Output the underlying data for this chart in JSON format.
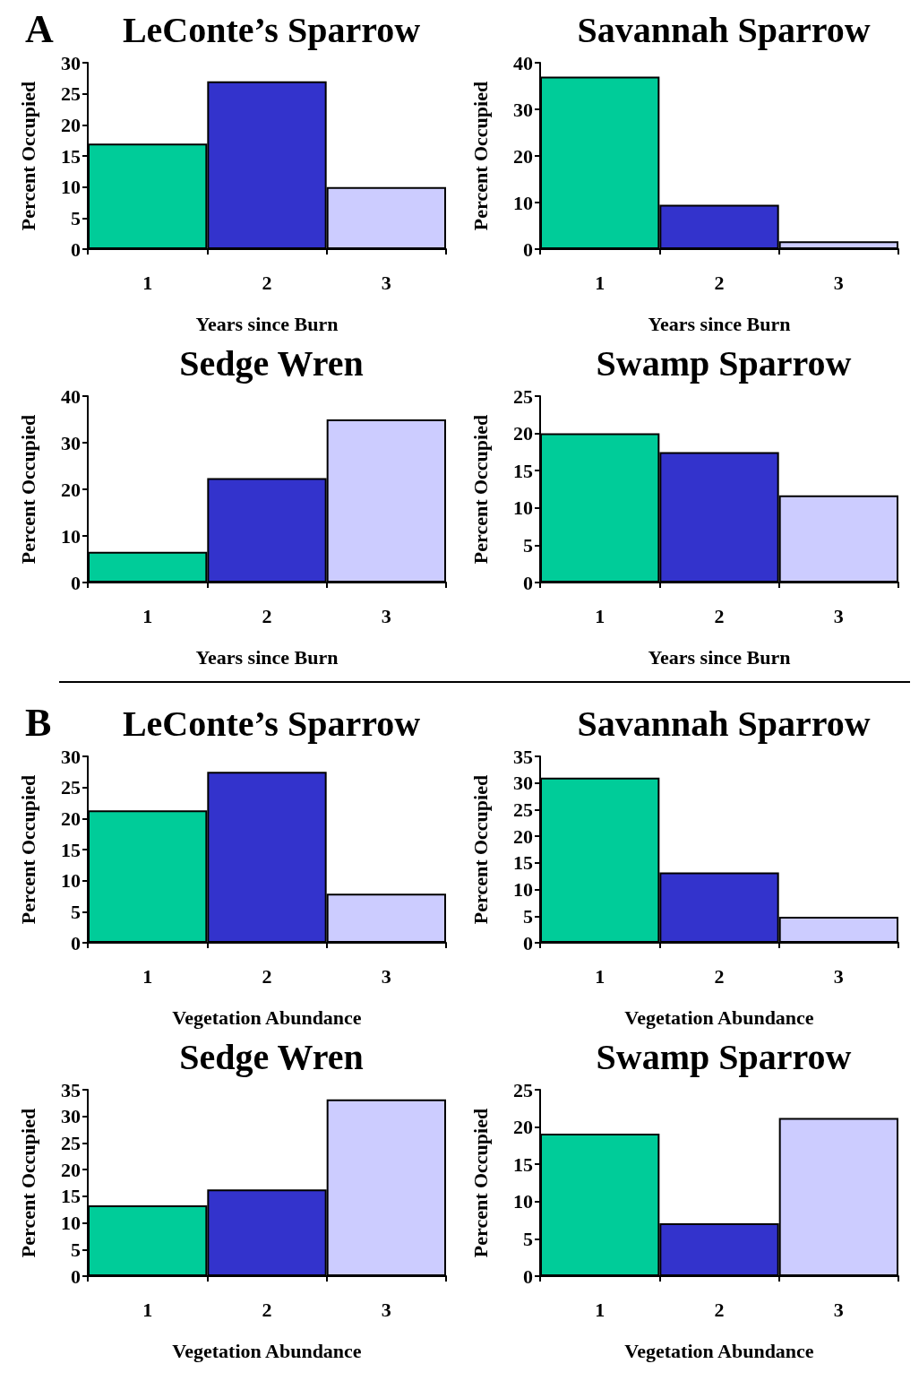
{
  "chart_data": [
    {
      "type": "bar",
      "title": "LeConte’s Sparrow",
      "annotations": [
        "A"
      ],
      "xlabel": "Years since Burn",
      "ylabel": "Percent Occupied",
      "categories": [
        "1",
        "2",
        "3"
      ],
      "values": [
        17,
        27,
        10
      ],
      "colors": [
        "#00cc99",
        "#3333cc",
        "#ccccff"
      ],
      "ylim": [
        0,
        30
      ],
      "yticks": [
        0,
        5,
        10,
        15,
        20,
        25,
        30
      ]
    },
    {
      "type": "bar",
      "title": "Savannah Sparrow",
      "xlabel": "Years since Burn",
      "ylabel": "Percent Occupied",
      "categories": [
        "1",
        "2",
        "3"
      ],
      "values": [
        37,
        9.5,
        1.7
      ],
      "colors": [
        "#00cc99",
        "#3333cc",
        "#ccccff"
      ],
      "ylim": [
        0,
        40
      ],
      "yticks": [
        0,
        10,
        20,
        30,
        40
      ]
    },
    {
      "type": "bar",
      "title": "Sedge Wren",
      "xlabel": "Years since Burn",
      "ylabel": "Percent Occupied",
      "categories": [
        "1",
        "2",
        "3"
      ],
      "values": [
        6.6,
        22.4,
        35
      ],
      "colors": [
        "#00cc99",
        "#3333cc",
        "#ccccff"
      ],
      "ylim": [
        0,
        40
      ],
      "yticks": [
        0,
        10,
        20,
        30,
        40
      ]
    },
    {
      "type": "bar",
      "title": "Swamp Sparrow",
      "xlabel": "Years since Burn",
      "ylabel": "Percent Occupied",
      "categories": [
        "1",
        "2",
        "3"
      ],
      "values": [
        20,
        17.5,
        11.7
      ],
      "colors": [
        "#00cc99",
        "#3333cc",
        "#ccccff"
      ],
      "ylim": [
        0,
        25
      ],
      "yticks": [
        0,
        5,
        10,
        15,
        20,
        25
      ]
    },
    {
      "type": "bar",
      "title": "LeConte’s Sparrow",
      "annotations": [
        "B"
      ],
      "xlabel": "Vegetation Abundance",
      "ylabel": "Percent Occupied",
      "categories": [
        "1",
        "2",
        "3"
      ],
      "values": [
        21.3,
        27.5,
        7.9
      ],
      "colors": [
        "#00cc99",
        "#3333cc",
        "#ccccff"
      ],
      "ylim": [
        0,
        30
      ],
      "yticks": [
        0,
        5,
        10,
        15,
        20,
        25,
        30
      ]
    },
    {
      "type": "bar",
      "title": "Savannah Sparrow",
      "xlabel": "Vegetation Abundance",
      "ylabel": "Percent Occupied",
      "categories": [
        "1",
        "2",
        "3"
      ],
      "values": [
        31,
        13.2,
        4.9
      ],
      "colors": [
        "#00cc99",
        "#3333cc",
        "#ccccff"
      ],
      "ylim": [
        0,
        35
      ],
      "yticks": [
        0,
        5,
        10,
        15,
        20,
        25,
        30,
        35
      ]
    },
    {
      "type": "bar",
      "title": "Sedge Wren",
      "xlabel": "Vegetation Abundance",
      "ylabel": "Percent Occupied",
      "categories": [
        "1",
        "2",
        "3"
      ],
      "values": [
        13.3,
        16.3,
        33.2
      ],
      "colors": [
        "#00cc99",
        "#3333cc",
        "#ccccff"
      ],
      "ylim": [
        0,
        35
      ],
      "yticks": [
        0,
        5,
        10,
        15,
        20,
        25,
        30,
        35
      ]
    },
    {
      "type": "bar",
      "title": "Swamp Sparrow",
      "xlabel": "Vegetation Abundance",
      "ylabel": "Percent Occupied",
      "categories": [
        "1",
        "2",
        "3"
      ],
      "values": [
        19.1,
        7.1,
        21.2
      ],
      "colors": [
        "#00cc99",
        "#3333cc",
        "#ccccff"
      ],
      "ylim": [
        0,
        25
      ],
      "yticks": [
        0,
        5,
        10,
        15,
        20,
        25
      ]
    }
  ]
}
